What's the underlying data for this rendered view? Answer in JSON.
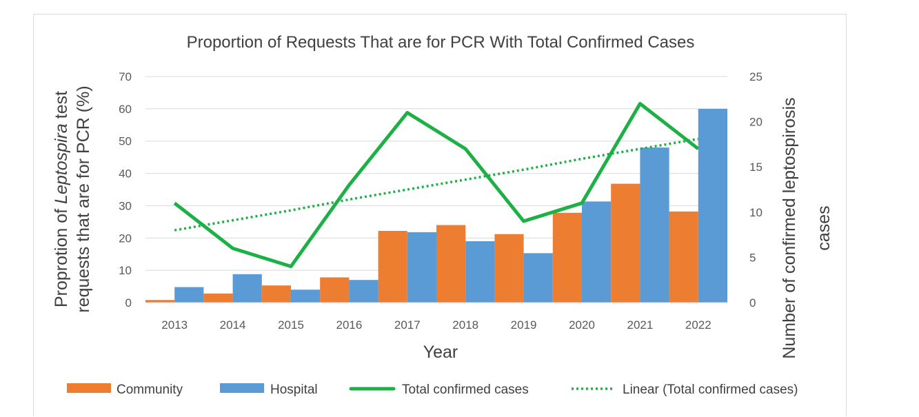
{
  "chart_data": {
    "type": "bar",
    "title": "Proportion of Requests That are for PCR With Total Confirmed Cases",
    "xlabel": "Year",
    "ylabel_left_line1_prefix": "Proprotion of ",
    "ylabel_left_line1_italic": "Leptospira",
    "ylabel_left_line1_suffix": " test",
    "ylabel_left_line2": "requests that are for PCR (%)",
    "ylabel_right_line1": "Number of confirmed leptospirosis",
    "ylabel_right_line2": "cases",
    "categories": [
      "2013",
      "2014",
      "2015",
      "2016",
      "2017",
      "2018",
      "2019",
      "2020",
      "2021",
      "2022"
    ],
    "ylim_left": [
      0,
      70
    ],
    "yticks_left": [
      "0",
      "10",
      "20",
      "30",
      "40",
      "50",
      "60",
      "70"
    ],
    "ylim_right": [
      0,
      25
    ],
    "yticks_right": [
      "0",
      "5",
      "10",
      "15",
      "20",
      "25"
    ],
    "grid": true,
    "legend_position": "bottom",
    "series": [
      {
        "name": "Community",
        "type": "bar",
        "axis": "left",
        "color": "#ED7D31",
        "values": [
          0.8,
          2.8,
          5.3,
          7.8,
          22.2,
          24.0,
          21.2,
          27.8,
          36.8,
          28.2
        ]
      },
      {
        "name": "Hospital",
        "type": "bar",
        "axis": "left",
        "color": "#5B9BD5",
        "values": [
          4.8,
          8.8,
          4.0,
          7.0,
          21.8,
          19.0,
          15.3,
          31.3,
          48.0,
          60.0
        ]
      },
      {
        "name": "Total confirmed cases",
        "type": "line",
        "axis": "right",
        "color": "#1DB046",
        "values": [
          11,
          6,
          4,
          13,
          21,
          17,
          9,
          11,
          22,
          17
        ]
      },
      {
        "name": "Linear (Total confirmed cases)",
        "type": "line-dotted",
        "axis": "right",
        "color": "#1DB046",
        "values": [
          8.0,
          9.1,
          10.2,
          11.4,
          12.5,
          13.6,
          14.7,
          15.9,
          17.0,
          18.1
        ]
      }
    ]
  }
}
